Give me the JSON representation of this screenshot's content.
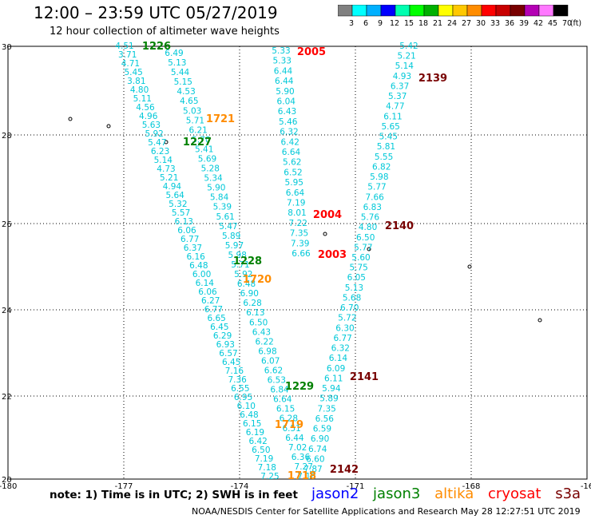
{
  "header": {
    "title": "12:00 – 23:59 UTC 05/27/2019",
    "subtitle": "12 hour collection of altimeter wave heights"
  },
  "colorbar": {
    "colors": [
      "#808080",
      "#00ffff",
      "#00b0ff",
      "#0000ff",
      "#00ffb0",
      "#00ff00",
      "#00b000",
      "#ffff00",
      "#ffc800",
      "#ff8c00",
      "#ff0000",
      "#c80000",
      "#780000",
      "#b400b4",
      "#ff78ff",
      "#000000"
    ],
    "labels": [
      "3",
      "6",
      "9",
      "12",
      "15",
      "18",
      "21",
      "24",
      "27",
      "30",
      "33",
      "36",
      "39",
      "42",
      "45",
      "70"
    ],
    "unit": "(ft)"
  },
  "axes": {
    "x_ticks": [
      "-180",
      "-177",
      "-174",
      "-171",
      "-168",
      "-16"
    ],
    "y_ticks": [
      "30",
      "28",
      "26",
      "24",
      "22",
      "20"
    ]
  },
  "track_colors": {
    "data": "#00c8d8",
    "jason3": "#008000",
    "altika": "#ff8c00",
    "cryosat": "#ff0000",
    "s3a": "#780000"
  },
  "tracks": [
    {
      "name": "track-a",
      "values": [
        "4.51",
        "3.71",
        "4.71",
        "5.45",
        "3.81",
        "4.80",
        "5.11",
        "4.56",
        "4.96",
        "5.63",
        "5.92",
        "5.47",
        "6.23",
        "5.14",
        "4.73",
        "5.21",
        "4.94",
        "5.64",
        "5.32",
        "5.57",
        "6.13",
        "6.06",
        "6.77",
        "6.37",
        "6.16",
        "6.48",
        "6.00",
        "6.14",
        "6.06",
        "6.27",
        "6.77",
        "6.65",
        "6.45",
        "6.29",
        "6.93",
        "6.57",
        "6.45",
        "7.16",
        "7.36",
        "6.55",
        "6.95",
        "6.10",
        "6.48",
        "6.15",
        "6.19",
        "6.42",
        "6.50",
        "7.19",
        "7.18",
        "7.25"
      ]
    },
    {
      "name": "track-b",
      "values": [
        "6.49",
        "5.13",
        "5.44",
        "5.15",
        "4.53",
        "4.65",
        "5.03",
        "5.71",
        "6.21",
        "5.70",
        "5.41",
        "5.69",
        "5.28",
        "5.34",
        "5.90",
        "5.84",
        "5.39",
        "5.61",
        "5.47",
        "5.89",
        "5.97",
        "5.98",
        "5.71",
        "5.92",
        "6.48",
        "6.90",
        "6.28",
        "6.13",
        "6.50",
        "6.43",
        "6.22",
        "6.98",
        "6.07",
        "6.62",
        "6.53",
        "6.84",
        "6.64",
        "6.15",
        "6.28",
        "6.51",
        "6.44",
        "7.02",
        "6.36",
        "7.27",
        "7.18"
      ]
    },
    {
      "name": "track-c",
      "values": [
        "5.33",
        "5.33",
        "6.44",
        "6.44",
        "5.90",
        "6.04",
        "6.43",
        "5.46",
        "6.32",
        "6.42",
        "6.64",
        "5.62",
        "6.52",
        "5.95",
        "6.64",
        "7.19",
        "8.01",
        "7.22",
        "7.35",
        "7.39",
        "6.66"
      ]
    },
    {
      "name": "track-d",
      "values": [
        "5.42",
        "5.21",
        "5.14",
        "4.93",
        "6.37",
        "5.37",
        "4.77",
        "6.11",
        "5.65",
        "5.45",
        "5.81",
        "5.55",
        "6.82",
        "5.98",
        "5.77",
        "7.66",
        "6.83",
        "5.76",
        "4.80",
        "6.50",
        "5.77",
        "5.60",
        "5.75",
        "6.05",
        "5.13",
        "5.68",
        "6.70",
        "5.72",
        "6.30",
        "6.77",
        "6.32",
        "6.14",
        "6.09",
        "6.11",
        "5.94",
        "5.89",
        "7.35",
        "6.56",
        "6.59",
        "6.90",
        "6.74",
        "6.60",
        "7.87"
      ]
    }
  ],
  "pass_labels": [
    {
      "text": "1226",
      "sat": "jason3"
    },
    {
      "text": "1721",
      "sat": "altika"
    },
    {
      "text": "1227",
      "sat": "jason3"
    },
    {
      "text": "1228",
      "sat": "jason3"
    },
    {
      "text": "1720",
      "sat": "altika"
    },
    {
      "text": "1229",
      "sat": "jason3"
    },
    {
      "text": "1719",
      "sat": "altika"
    },
    {
      "text": "1718",
      "sat": "altika"
    },
    {
      "text": "2005",
      "sat": "cryosat"
    },
    {
      "text": "2004",
      "sat": "cryosat"
    },
    {
      "text": "2003",
      "sat": "cryosat"
    },
    {
      "text": "2139",
      "sat": "s3a"
    },
    {
      "text": "2140",
      "sat": "s3a"
    },
    {
      "text": "2141",
      "sat": "s3a"
    },
    {
      "text": "2142",
      "sat": "s3a"
    }
  ],
  "footer": {
    "note": "note:  1) Time is in UTC;  2) SWH is in feet",
    "legend": [
      {
        "label": "jason2",
        "color": "#0000ff"
      },
      {
        "label": "jason3",
        "color": "#008000"
      },
      {
        "label": "altika",
        "color": "#ff8c00"
      },
      {
        "label": "cryosat",
        "color": "#ff0000"
      },
      {
        "label": "s3a",
        "color": "#780000"
      }
    ],
    "credit": "NOAA/NESDIS Center for Satellite Applications and Research     May 28 12:27:51 UTC 2019"
  }
}
